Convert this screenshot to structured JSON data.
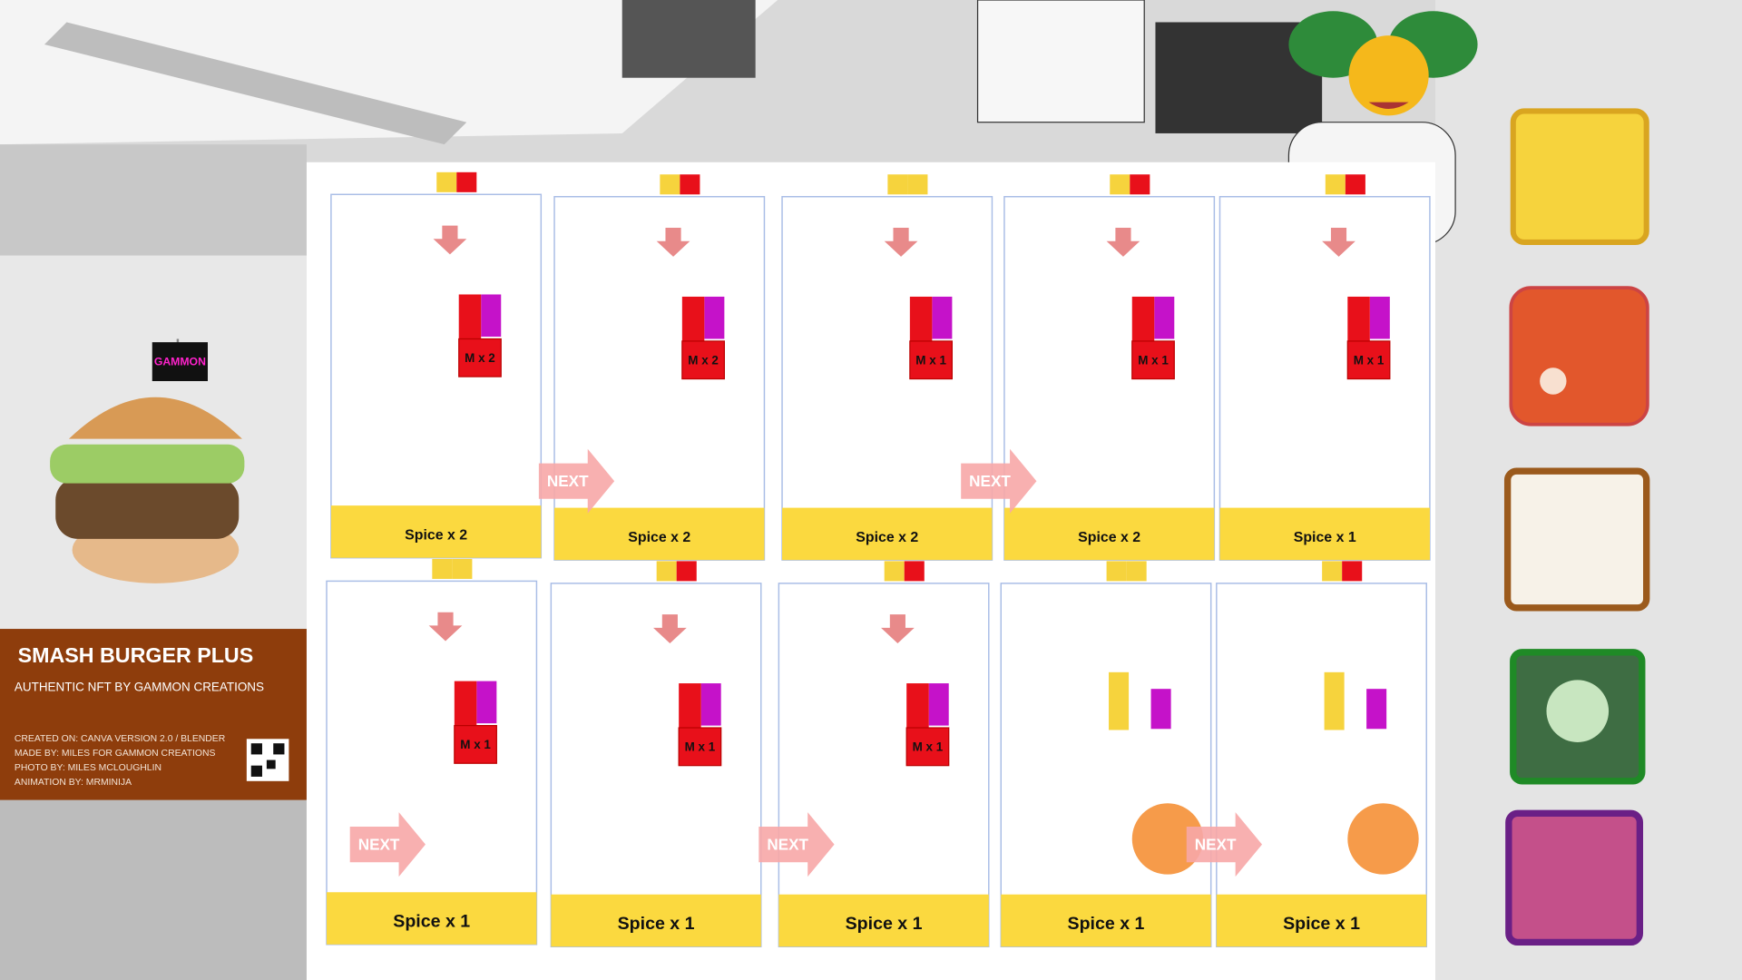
{
  "card": {
    "flag": "GAMMON",
    "title": "SMASH BURGER PLUS",
    "subtitle": "AUTHENTIC NFT BY GAMMON CREATIONS",
    "credits": [
      "CREATED ON: CANVA VERSION 2.0 / BLENDER",
      "MADE BY: MILES FOR GAMMON CREATIONS",
      "PHOTO BY: MILES MCLOUGHLIN",
      "ANIMATION BY: MRMINIJA"
    ]
  },
  "panels": [
    {
      "block": "M x 2",
      "spice": "Spice x 2"
    },
    {
      "block": "M x 2",
      "spice": "Spice x 2"
    },
    {
      "block": "M x 1",
      "spice": "Spice x 2"
    },
    {
      "block": "M x 1",
      "spice": "Spice x 2"
    },
    {
      "block": "M x 1",
      "spice": "Spice x 1"
    },
    {
      "block": "M x 1",
      "spice": "Spice x 1"
    },
    {
      "block": "M x 1",
      "spice": "Spice x 1"
    },
    {
      "block": "M x 1",
      "spice": "Spice x 1"
    },
    {
      "spice": "Spice x 1"
    },
    {
      "spice": "Spice x 1"
    }
  ],
  "next_arrows": [
    "NEXT",
    "NEXT",
    "NEXT",
    "NEXT",
    "NEXT"
  ]
}
